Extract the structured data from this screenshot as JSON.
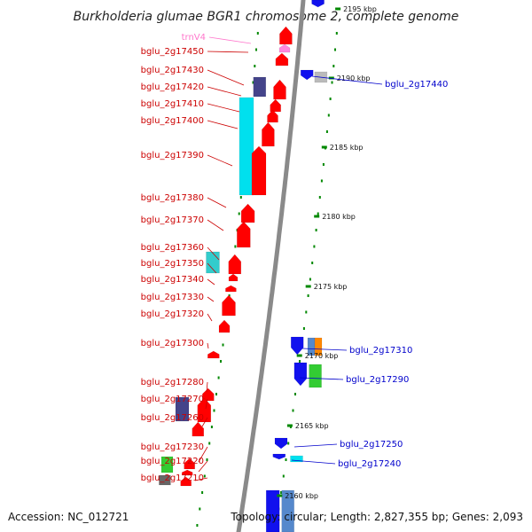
{
  "title": "Burkholderia glumae BGR1 chromosome 2, complete genome",
  "footer": {
    "accession": "Accession: NC_012721",
    "summary": "Topology: circular; Length: 2,827,355 bp; Genes: 2,093"
  },
  "colors": {
    "backbone": "#8a8a8a",
    "left_label": "#cc0000",
    "right_label": "#0000cc",
    "rna_label": "#ff77cc",
    "tick": "#008800",
    "red": "#ff0000",
    "cyan": "#00e0ee",
    "cyan2": "#33cccc",
    "navy": "#44448a",
    "blue": "#1111ee",
    "steelblue": "#5588cc",
    "orange": "#ff8800",
    "green": "#33cc33",
    "gray": "#666666",
    "lightgray": "#bbbbbb",
    "pink": "#ff88dd"
  },
  "kbp_ticks": [
    "2195 kbp",
    "2190 kbp",
    "2185 kbp",
    "2180 kbp",
    "2175 kbp",
    "2170 kbp",
    "2165 kbp",
    "2160 kbp"
  ],
  "left_labels": [
    "trnV4",
    "bglu_2g17450",
    "bglu_2g17430",
    "bglu_2g17420",
    "bglu_2g17410",
    "bglu_2g17400",
    "bglu_2g17390",
    "bglu_2g17380",
    "bglu_2g17370",
    "bglu_2g17360",
    "bglu_2g17350",
    "bglu_2g17340",
    "bglu_2g17330",
    "bglu_2g17320",
    "bglu_2g17300",
    "bglu_2g17280",
    "bglu_2g17270",
    "bglu_2g17260",
    "bglu_2g17230",
    "bglu_2g17220",
    "bglu_2g17210"
  ],
  "right_labels": [
    "bglu_2g17440",
    "bglu_2g17310",
    "bglu_2g17290",
    "bglu_2g17250",
    "bglu_2g17240"
  ]
}
